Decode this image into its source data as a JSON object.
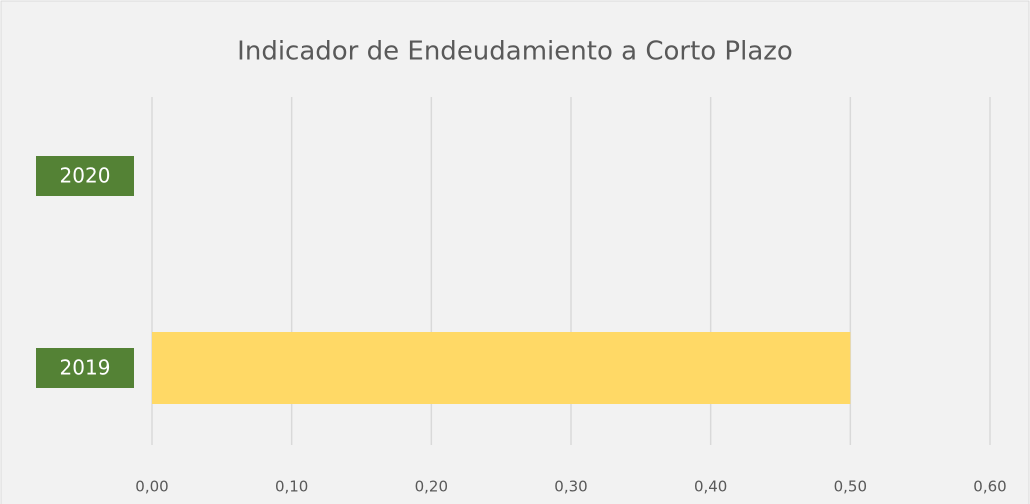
{
  "chart_data": {
    "type": "bar",
    "orientation": "horizontal",
    "title": "Indicador de Endeudamiento a Corto Plazo",
    "categories": [
      "2020",
      "2019"
    ],
    "values": [
      0,
      0.5
    ],
    "color": "#ffd966",
    "label_color": "#548235",
    "xlim": [
      0,
      0.6
    ],
    "xticks": [
      {
        "value": 0,
        "label": "0,00"
      },
      {
        "value": 0.1,
        "label": "0,10"
      },
      {
        "value": 0.2,
        "label": "0,20"
      },
      {
        "value": 0.3,
        "label": "0,30"
      },
      {
        "value": 0.4,
        "label": "0,40"
      },
      {
        "value": 0.5,
        "label": "0,50"
      },
      {
        "value": 0.6,
        "label": "0,60"
      }
    ],
    "grid": true
  }
}
